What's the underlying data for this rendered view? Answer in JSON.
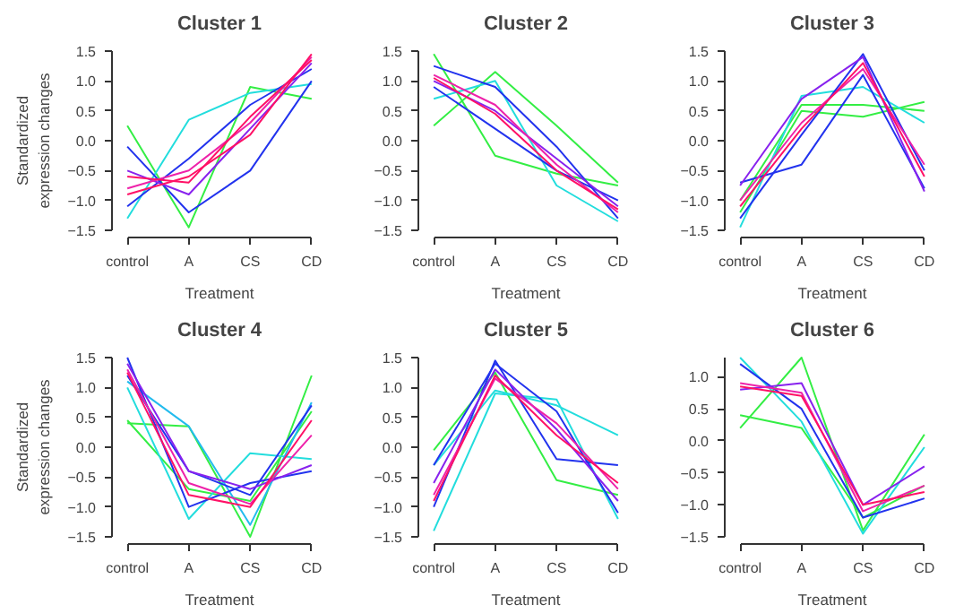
{
  "chart_data": [
    {
      "type": "line",
      "title": "Cluster 1",
      "xlabel": "Treatment",
      "ylabel": "Standardized expression changes",
      "categories": [
        "control",
        "A",
        "CS",
        "CD"
      ],
      "ylim": [
        -1.5,
        1.5
      ],
      "yticks": [
        {
          "value": -1.5,
          "label": "−1.5"
        },
        {
          "value": -1.0,
          "label": "−1.0"
        },
        {
          "value": -0.5,
          "label": "−0.5"
        },
        {
          "value": 0,
          "label": "0.0"
        },
        {
          "value": 0.5,
          "label": "0.5"
        },
        {
          "value": 1,
          "label": "1.0"
        },
        {
          "value": 1.5,
          "label": "1.5"
        }
      ],
      "grid": false,
      "series": [
        {
          "color": "#33ee44",
          "values": [
            0.25,
            -1.45,
            0.9,
            0.7
          ]
        },
        {
          "color": "#22dddd",
          "values": [
            -1.3,
            0.35,
            0.8,
            0.95
          ]
        },
        {
          "color": "#2233ee",
          "values": [
            -0.1,
            -1.2,
            -0.5,
            1.0
          ]
        },
        {
          "color": "#2233ee",
          "values": [
            -1.1,
            -0.3,
            0.6,
            1.2
          ]
        },
        {
          "color": "#8822ee",
          "values": [
            -0.5,
            -0.9,
            0.2,
            1.3
          ]
        },
        {
          "color": "#ee22aa",
          "values": [
            -0.8,
            -0.5,
            0.3,
            1.4
          ]
        },
        {
          "color": "#ff1166",
          "values": [
            -0.9,
            -0.6,
            0.1,
            1.45
          ]
        },
        {
          "color": "#ff1166",
          "values": [
            -0.6,
            -0.7,
            0.4,
            1.35
          ]
        }
      ]
    },
    {
      "type": "line",
      "title": "Cluster 2",
      "xlabel": "Treatment",
      "categories": [
        "control",
        "A",
        "CS",
        "CD"
      ],
      "ylim": [
        -1.5,
        1.5
      ],
      "yticks": [
        {
          "value": -1.5,
          "label": "−1.5"
        },
        {
          "value": -1.0,
          "label": "−1.0"
        },
        {
          "value": -0.5,
          "label": "−0.5"
        },
        {
          "value": 0,
          "label": "0.0"
        },
        {
          "value": 0.5,
          "label": "0.5"
        },
        {
          "value": 1,
          "label": "1.0"
        },
        {
          "value": 1.5,
          "label": "1.5"
        }
      ],
      "grid": false,
      "series": [
        {
          "color": "#33ee44",
          "values": [
            0.25,
            1.15,
            0.25,
            -0.7
          ]
        },
        {
          "color": "#33ee44",
          "values": [
            1.45,
            -0.25,
            -0.55,
            -0.75
          ]
        },
        {
          "color": "#22dddd",
          "values": [
            0.7,
            1.0,
            -0.75,
            -1.35
          ]
        },
        {
          "color": "#2233ee",
          "values": [
            1.25,
            0.9,
            -0.1,
            -1.3
          ]
        },
        {
          "color": "#2233ee",
          "values": [
            0.9,
            0.2,
            -0.5,
            -1.0
          ]
        },
        {
          "color": "#8822ee",
          "values": [
            1.0,
            0.5,
            -0.3,
            -1.1
          ]
        },
        {
          "color": "#ee22aa",
          "values": [
            1.1,
            0.6,
            -0.4,
            -1.2
          ]
        },
        {
          "color": "#ff1166",
          "values": [
            1.05,
            0.45,
            -0.5,
            -1.15
          ]
        }
      ]
    },
    {
      "type": "line",
      "title": "Cluster 3",
      "xlabel": "Treatment",
      "categories": [
        "control",
        "A",
        "CS",
        "CD"
      ],
      "ylim": [
        -1.5,
        1.5
      ],
      "yticks": [
        {
          "value": -1.5,
          "label": "−1.5"
        },
        {
          "value": -1.0,
          "label": "−1.0"
        },
        {
          "value": -0.5,
          "label": "−0.5"
        },
        {
          "value": 0,
          "label": "0.0"
        },
        {
          "value": 0.5,
          "label": "0.5"
        },
        {
          "value": 1,
          "label": "1.0"
        },
        {
          "value": 1.5,
          "label": "1.5"
        }
      ],
      "grid": false,
      "series": [
        {
          "color": "#33ee44",
          "values": [
            -1.2,
            0.5,
            0.4,
            0.65
          ]
        },
        {
          "color": "#33ee44",
          "values": [
            -1.0,
            0.6,
            0.6,
            0.5
          ]
        },
        {
          "color": "#22dddd",
          "values": [
            -1.45,
            0.75,
            0.9,
            0.3
          ]
        },
        {
          "color": "#2233ee",
          "values": [
            -0.7,
            -0.4,
            1.1,
            -0.8
          ]
        },
        {
          "color": "#2233ee",
          "values": [
            -1.3,
            0.1,
            1.45,
            -0.5
          ]
        },
        {
          "color": "#8822ee",
          "values": [
            -0.75,
            0.7,
            1.4,
            -0.85
          ]
        },
        {
          "color": "#ee22aa",
          "values": [
            -1.0,
            0.3,
            1.2,
            -0.4
          ]
        },
        {
          "color": "#ff1166",
          "values": [
            -1.1,
            0.2,
            1.3,
            -0.6
          ]
        }
      ]
    },
    {
      "type": "line",
      "title": "Cluster 4",
      "xlabel": "Treatment",
      "ylabel": "Standardized expression changes",
      "categories": [
        "control",
        "A",
        "CS",
        "CD"
      ],
      "ylim": [
        -1.5,
        1.5
      ],
      "yticks": [
        {
          "value": -1.5,
          "label": "−1.5"
        },
        {
          "value": -1.0,
          "label": "−1.0"
        },
        {
          "value": -0.5,
          "label": "−0.5"
        },
        {
          "value": 0,
          "label": "0.0"
        },
        {
          "value": 0.5,
          "label": "0.5"
        },
        {
          "value": 1,
          "label": "1.0"
        },
        {
          "value": 1.5,
          "label": "1.5"
        }
      ],
      "grid": false,
      "series": [
        {
          "color": "#33ee44",
          "values": [
            0.4,
            0.35,
            -1.5,
            1.2
          ]
        },
        {
          "color": "#33ee44",
          "values": [
            0.45,
            -0.7,
            -0.9,
            0.6
          ]
        },
        {
          "color": "#22dddd",
          "values": [
            1.0,
            -1.2,
            -0.1,
            -0.2
          ]
        },
        {
          "color": "#22bbee",
          "values": [
            1.1,
            0.35,
            -1.3,
            0.75
          ]
        },
        {
          "color": "#2233ee",
          "values": [
            1.5,
            -1.0,
            -0.6,
            -0.4
          ]
        },
        {
          "color": "#2233ee",
          "values": [
            1.2,
            -0.4,
            -0.8,
            0.7
          ]
        },
        {
          "color": "#8822ee",
          "values": [
            1.4,
            -0.4,
            -0.7,
            -0.3
          ]
        },
        {
          "color": "#ee22aa",
          "values": [
            1.3,
            -0.6,
            -0.95,
            0.2
          ]
        },
        {
          "color": "#ff1166",
          "values": [
            1.25,
            -0.8,
            -1.0,
            0.45
          ]
        }
      ]
    },
    {
      "type": "line",
      "title": "Cluster 5",
      "xlabel": "Treatment",
      "categories": [
        "control",
        "A",
        "CS",
        "CD"
      ],
      "ylim": [
        -1.5,
        1.5
      ],
      "yticks": [
        {
          "value": -1.5,
          "label": "−1.5"
        },
        {
          "value": -1.0,
          "label": "−1.0"
        },
        {
          "value": -0.5,
          "label": "−0.5"
        },
        {
          "value": 0,
          "label": "0.0"
        },
        {
          "value": 0.5,
          "label": "0.5"
        },
        {
          "value": 1,
          "label": "1.0"
        },
        {
          "value": 1.5,
          "label": "1.5"
        }
      ],
      "grid": false,
      "series": [
        {
          "color": "#33ee44",
          "values": [
            -0.05,
            1.25,
            -0.55,
            -0.8
          ]
        },
        {
          "color": "#22dddd",
          "values": [
            -1.4,
            0.9,
            0.8,
            -1.2
          ]
        },
        {
          "color": "#22dddd",
          "values": [
            -0.3,
            0.95,
            0.7,
            0.2
          ]
        },
        {
          "color": "#2233ee",
          "values": [
            -1.0,
            1.45,
            -0.2,
            -0.3
          ]
        },
        {
          "color": "#2233ee",
          "values": [
            -0.3,
            1.4,
            0.6,
            -1.1
          ]
        },
        {
          "color": "#8822ee",
          "values": [
            -0.6,
            1.3,
            0.3,
            -0.9
          ]
        },
        {
          "color": "#ee22aa",
          "values": [
            -0.8,
            1.15,
            0.4,
            -0.7
          ]
        },
        {
          "color": "#ff1166",
          "values": [
            -0.9,
            1.2,
            0.2,
            -0.6
          ]
        }
      ]
    },
    {
      "type": "line",
      "title": "Cluster 6",
      "xlabel": "Treatment",
      "categories": [
        "control",
        "A",
        "CS",
        "CD"
      ],
      "ylim": [
        -1.5,
        1.3
      ],
      "yticks": [
        {
          "value": -1.5,
          "label": "−1.5"
        },
        {
          "value": -1.0,
          "label": "−1.0"
        },
        {
          "value": -0.5,
          "label": "−0.5"
        },
        {
          "value": 0,
          "label": "0.0"
        },
        {
          "value": 0.5,
          "label": "0.5"
        },
        {
          "value": 1,
          "label": "1.0"
        }
      ],
      "grid": false,
      "series": [
        {
          "color": "#33ee44",
          "values": [
            0.2,
            1.3,
            -1.4,
            0.1
          ]
        },
        {
          "color": "#33ee44",
          "values": [
            0.4,
            0.2,
            -1.2,
            -0.7
          ]
        },
        {
          "color": "#22dddd",
          "values": [
            1.3,
            0.3,
            -1.45,
            -0.1
          ]
        },
        {
          "color": "#2233ee",
          "values": [
            1.2,
            0.5,
            -1.2,
            -0.9
          ]
        },
        {
          "color": "#8822ee",
          "values": [
            0.8,
            0.9,
            -1.0,
            -0.4
          ]
        },
        {
          "color": "#ee22aa",
          "values": [
            0.9,
            0.75,
            -1.1,
            -0.7
          ]
        },
        {
          "color": "#ff1166",
          "values": [
            0.85,
            0.7,
            -1.0,
            -0.8
          ]
        }
      ]
    }
  ]
}
